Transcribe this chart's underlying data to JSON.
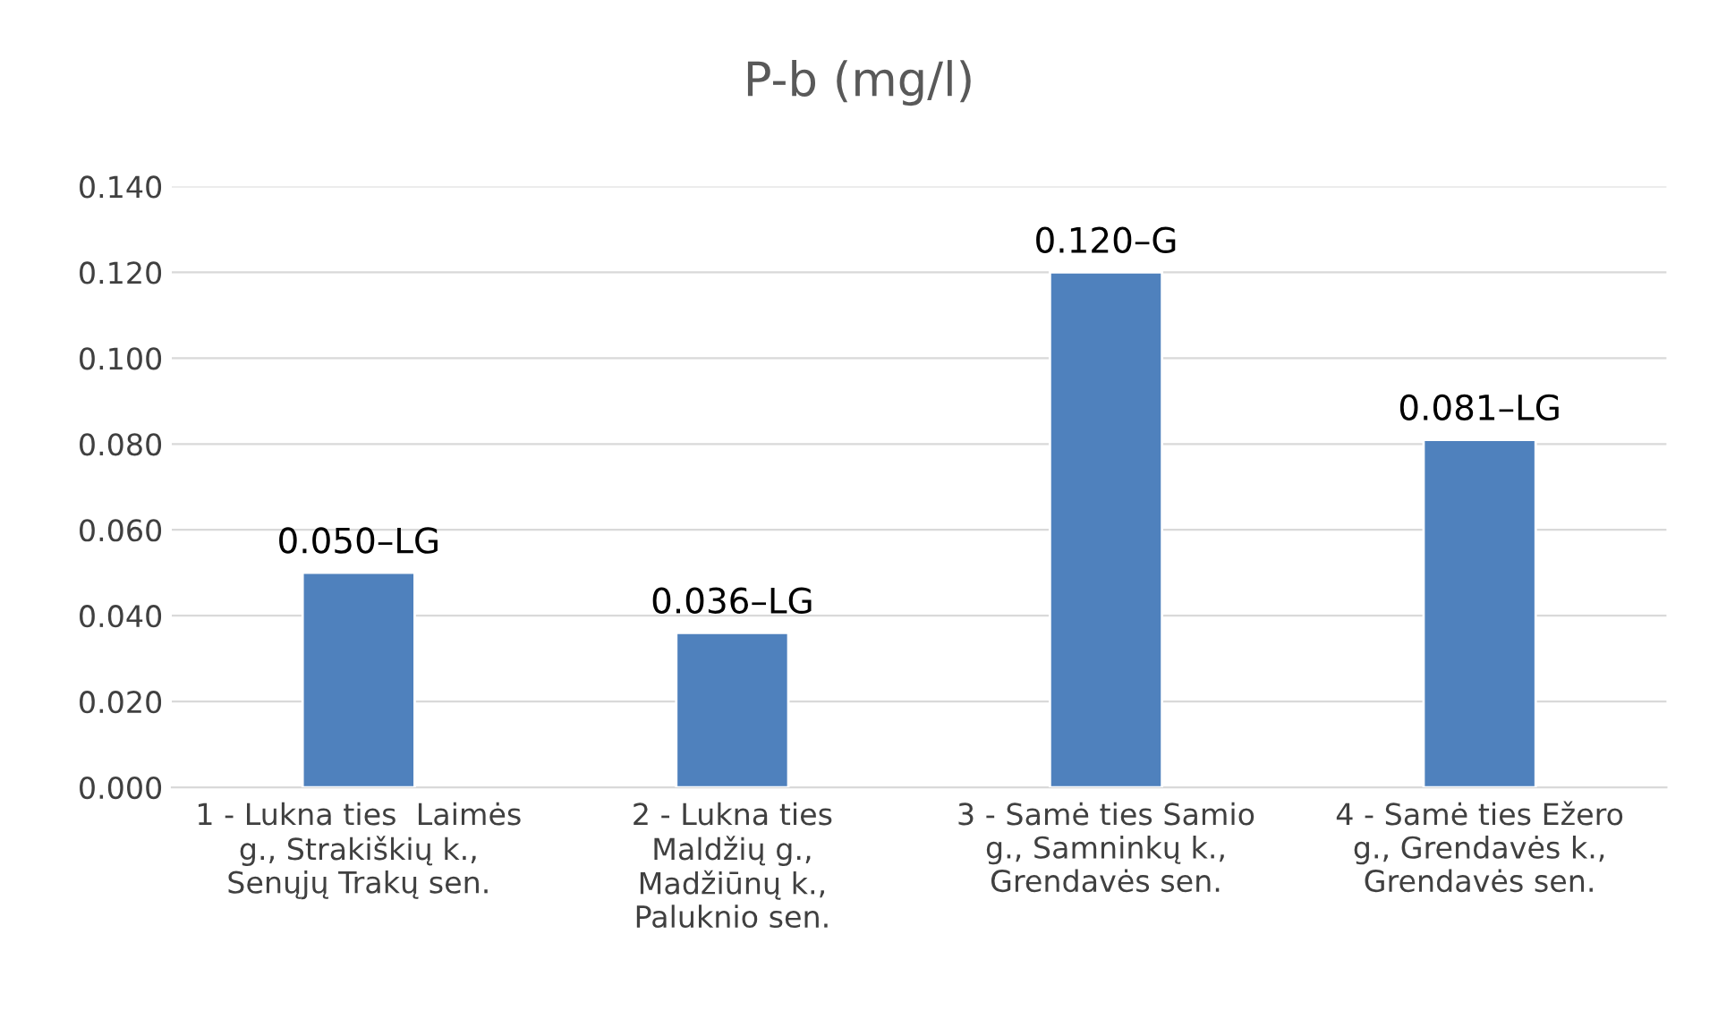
{
  "chart_data": {
    "type": "bar",
    "title": "P-b (mg/l)",
    "categories": [
      "1 - Lukna ties  Laimės\ng., Strakiškių k.,\nSenųjų Trakų sen.",
      "2 - Lukna ties\nMaldžių g.,\nMadžiūnų k.,\nPaluknio sen.",
      "3 - Samė ties Samio\ng., Samninkų k.,\nGrendavės sen.",
      "4 - Samė ties Ežero\ng., Grendavės k.,\nGrendavės sen."
    ],
    "values": [
      0.05,
      0.036,
      0.12,
      0.081
    ],
    "value_labels": [
      "0.050–LG",
      "0.036–LG",
      "0.120–G",
      "0.081–LG"
    ],
    "color": "#4f81bd",
    "ylim": [
      0,
      0.14
    ],
    "yticks": [
      {
        "value": 0,
        "label": "0.000"
      },
      {
        "value": 0.02,
        "label": "0.020"
      },
      {
        "value": 0.04,
        "label": "0.040"
      },
      {
        "value": 0.06,
        "label": "0.060"
      },
      {
        "value": 0.08,
        "label": "0.080"
      },
      {
        "value": 0.1,
        "label": "0.100"
      },
      {
        "value": 0.12,
        "label": "0.120"
      },
      {
        "value": 0.14,
        "label": "0.140"
      }
    ],
    "grid": "y",
    "legend": false
  }
}
